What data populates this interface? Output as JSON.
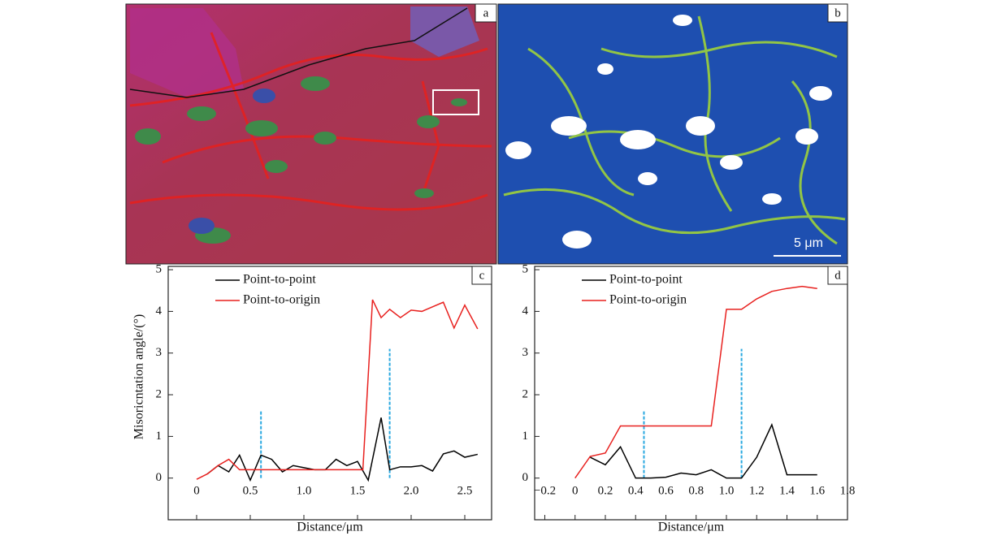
{
  "panels": [
    {
      "label": "a"
    },
    {
      "label": "b",
      "scale_bar": "5 μm"
    }
  ],
  "chart_data": [
    {
      "type": "line",
      "label": "c",
      "y_label": "Misoricntation angle/(°)",
      "x_label": "Distance/μm",
      "xlim": [
        -0.265,
        2.75
      ],
      "ylim": [
        -1,
        5.08
      ],
      "xticks": [
        0,
        0.5,
        {
          "value": 1,
          "label": "1.0"
        },
        1.5,
        {
          "value": 2,
          "label": "2.0"
        },
        2.5
      ],
      "yticks": [
        0,
        1,
        2,
        3,
        4,
        5
      ],
      "legend": "upper left",
      "series": [
        {
          "name": "Point-to-point",
          "color": "#000000",
          "x": [
            0.1,
            0.2,
            0.3,
            0.4,
            0.5,
            0.6,
            0.7,
            0.8,
            0.9,
            1.0,
            1.1,
            1.2,
            1.3,
            1.4,
            1.5,
            1.6,
            1.72,
            1.8,
            1.9,
            2.0,
            2.1,
            2.2,
            2.3,
            2.4,
            2.5,
            2.62
          ],
          "values": [
            0.1,
            0.3,
            0.15,
            0.55,
            -0.05,
            0.55,
            0.45,
            0.15,
            0.3,
            0.25,
            0.2,
            0.2,
            0.45,
            0.3,
            0.4,
            -0.05,
            1.45,
            0.2,
            0.27,
            0.27,
            0.3,
            0.17,
            0.58,
            0.65,
            0.5,
            0.57
          ]
        },
        {
          "name": "Point-to-origin",
          "color": "#e8211f",
          "x": [
            0,
            0.1,
            0.2,
            0.3,
            0.4,
            0.5,
            1.55,
            1.64,
            1.72,
            1.8,
            1.9,
            2.0,
            2.1,
            2.3,
            2.4,
            2.5,
            2.62
          ],
          "values": [
            -0.03,
            0.1,
            0.3,
            0.45,
            0.2,
            0.2,
            0.2,
            4.28,
            3.85,
            4.05,
            3.85,
            4.03,
            4.0,
            4.22,
            3.6,
            4.15,
            3.58
          ]
        }
      ],
      "vlines": [
        {
          "x": 0.6,
          "top": 1.6,
          "color": "#29a8e0"
        },
        {
          "x": 1.8,
          "top": 3.1,
          "color": "#29a8e0"
        }
      ]
    },
    {
      "type": "line",
      "label": "d",
      "x_label": "Distance/μm",
      "xlim": [
        -0.267,
        1.8
      ],
      "ylim": [
        -1,
        5.08
      ],
      "xticks": [
        {
          "value": -0.2,
          "label": "−0.2"
        },
        0,
        0.2,
        0.4,
        0.6,
        0.8,
        {
          "value": 1,
          "label": "1.0"
        },
        1.2,
        1.4,
        1.6,
        1.8
      ],
      "yticks": [
        0,
        1,
        2,
        3,
        4,
        5
      ],
      "legend": "upper left",
      "series": [
        {
          "name": "Point-to-point",
          "color": "#000000",
          "x": [
            0.1,
            0.2,
            0.3,
            0.4,
            0.5,
            0.6,
            0.7,
            0.8,
            0.9,
            1.0,
            1.1,
            1.2,
            1.3,
            1.4,
            1.5,
            1.6
          ],
          "values": [
            0.5,
            0.32,
            0.75,
            0,
            0,
            0.02,
            0.12,
            0.08,
            0.2,
            0,
            0,
            0.5,
            1.28,
            0.08,
            0.08,
            0.08
          ]
        },
        {
          "name": "Point-to-origin",
          "color": "#e8211f",
          "x": [
            0,
            0.1,
            0.2,
            0.3,
            0.9,
            1.0,
            1.1,
            1.2,
            1.3,
            1.4,
            1.5,
            1.6
          ],
          "values": [
            0,
            0.52,
            0.6,
            1.25,
            1.25,
            4.05,
            4.05,
            4.3,
            4.48,
            4.55,
            4.6,
            4.55
          ]
        }
      ],
      "vlines": [
        {
          "x": 0.455,
          "top": 1.6,
          "color": "#29a8e0"
        },
        {
          "x": 1.1,
          "top": 3.1,
          "color": "#29a8e0"
        }
      ]
    }
  ]
}
